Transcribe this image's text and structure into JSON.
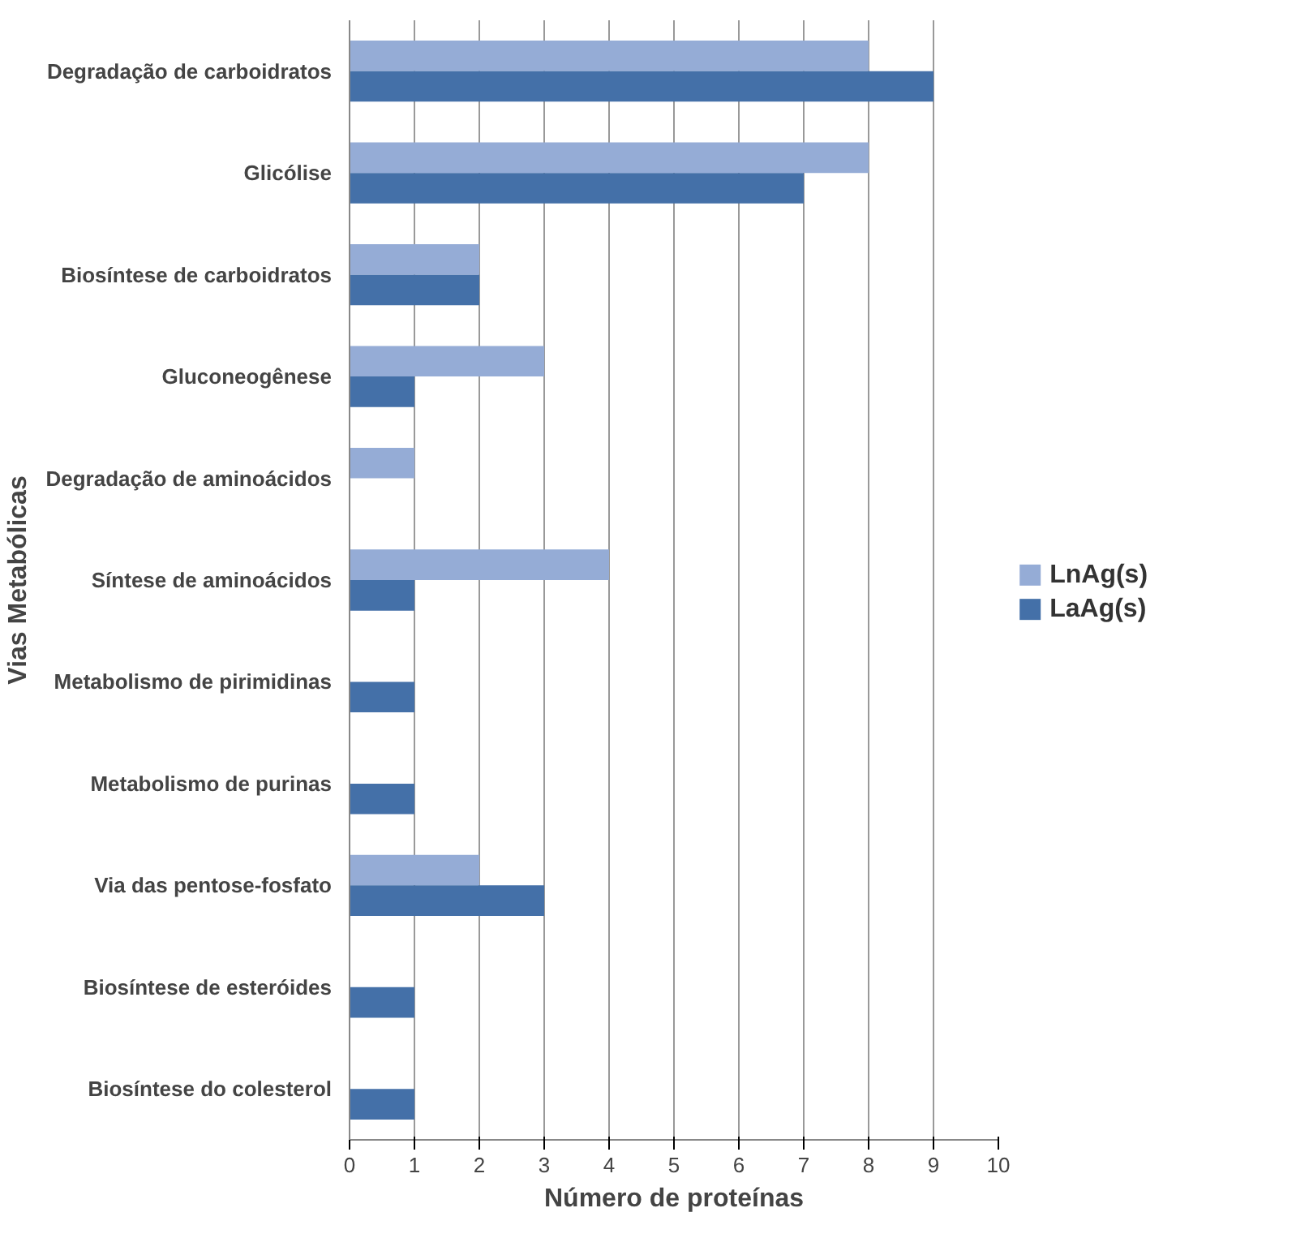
{
  "chart_data": {
    "type": "bar",
    "orientation": "horizontal",
    "ylabel": "Vias Metabólicas",
    "xlabel": "Número de proteínas",
    "categories": [
      "Degradação de carboidratos",
      "Glicólise",
      "Biosíntese de carboidratos",
      "Gluconeogênese",
      "Degradação de aminoácidos",
      "Síntese de aminoácidos",
      "Metabolismo de pirimidinas",
      "Metabolismo de purinas",
      "Via das pentose-fosfato",
      "Biosíntese de esteróides",
      "Biosíntese do colesterol"
    ],
    "series": [
      {
        "name": "LnAg(s)",
        "color": "#95acd6",
        "values": [
          8,
          8,
          2,
          3,
          1,
          4,
          null,
          null,
          2,
          null,
          null
        ]
      },
      {
        "name": "LaAg(s)",
        "color": "#4470a8",
        "values": [
          9,
          7,
          2,
          1,
          null,
          1,
          1,
          1,
          3,
          1,
          1
        ]
      }
    ],
    "xlim": [
      0,
      10
    ],
    "xticks": [
      0,
      1,
      2,
      3,
      4,
      5,
      6,
      7,
      8,
      9,
      10
    ],
    "grid": "x",
    "legend": "right"
  }
}
